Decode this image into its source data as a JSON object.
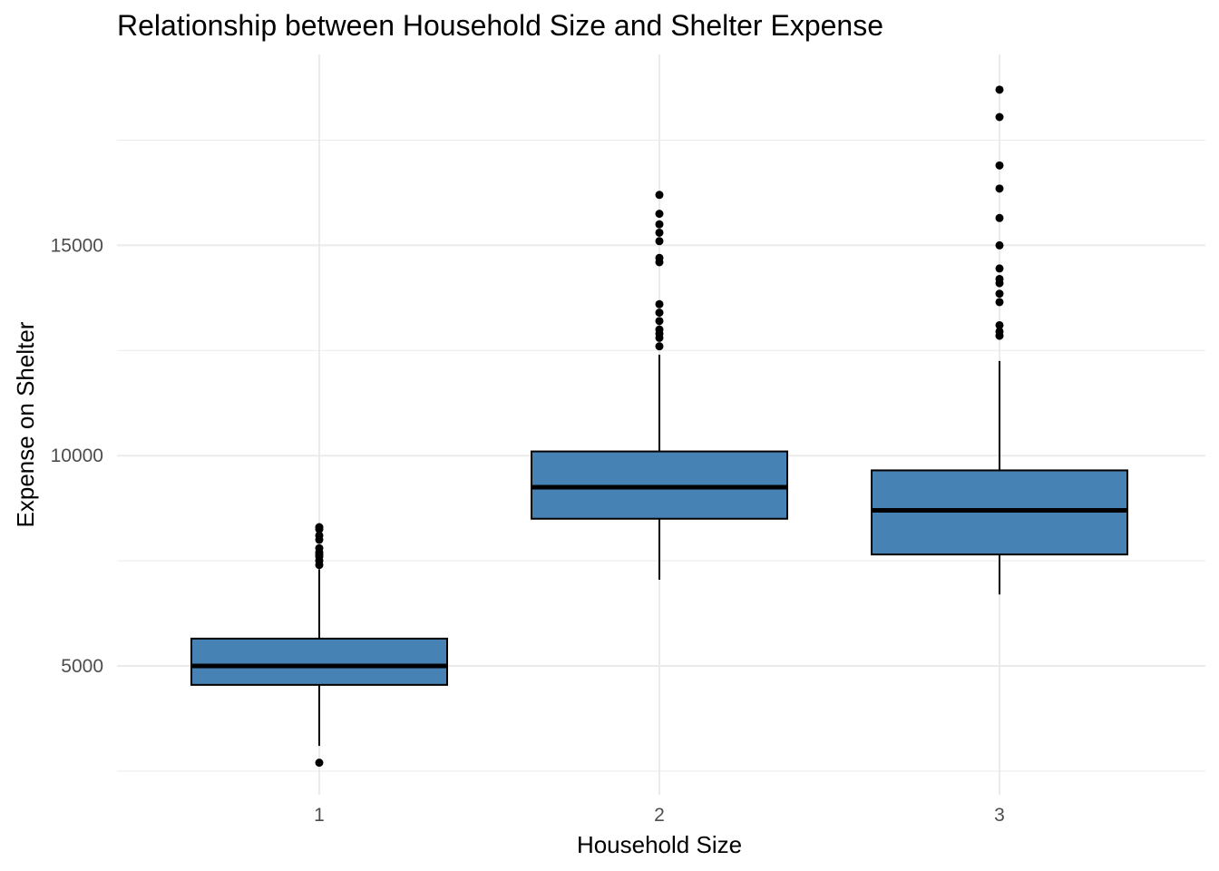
{
  "chart_data": {
    "type": "boxplot",
    "title": "Relationship between Household Size and Shelter Expense",
    "xlabel": "Household Size",
    "ylabel": "Expense on Shelter",
    "categories": [
      "1",
      "2",
      "3"
    ],
    "yticks": [
      5000,
      10000,
      15000
    ],
    "ytick_labels": [
      "5000",
      "10000",
      "15000"
    ],
    "ylim": [
      2400,
      19300
    ],
    "grid": true,
    "box_color": "#4682b4",
    "box_border_color": "#000000",
    "outlier_color": "#000000",
    "grid_color": "#ebebeb",
    "boxes": [
      {
        "category": "1",
        "whisker_low": 3100,
        "q1": 4550,
        "median": 5000,
        "q3": 5650,
        "whisker_high": 7300,
        "outliers": [
          2700,
          7400,
          7500,
          7600,
          7650,
          7700,
          7800,
          8000,
          8100,
          8250,
          8300
        ]
      },
      {
        "category": "2",
        "whisker_low": 7050,
        "q1": 8500,
        "median": 9250,
        "q3": 10100,
        "whisker_high": 12400,
        "outliers": [
          12600,
          12800,
          12900,
          13000,
          13200,
          13400,
          13600,
          14600,
          14700,
          15100,
          15300,
          15500,
          15750,
          16200
        ]
      },
      {
        "category": "3",
        "whisker_low": 6700,
        "q1": 7650,
        "median": 8700,
        "q3": 9650,
        "whisker_high": 12250,
        "outliers": [
          12850,
          12950,
          13100,
          13650,
          13850,
          14100,
          14200,
          14450,
          15000,
          15650,
          16350,
          16900,
          18050,
          18700
        ]
      }
    ]
  }
}
